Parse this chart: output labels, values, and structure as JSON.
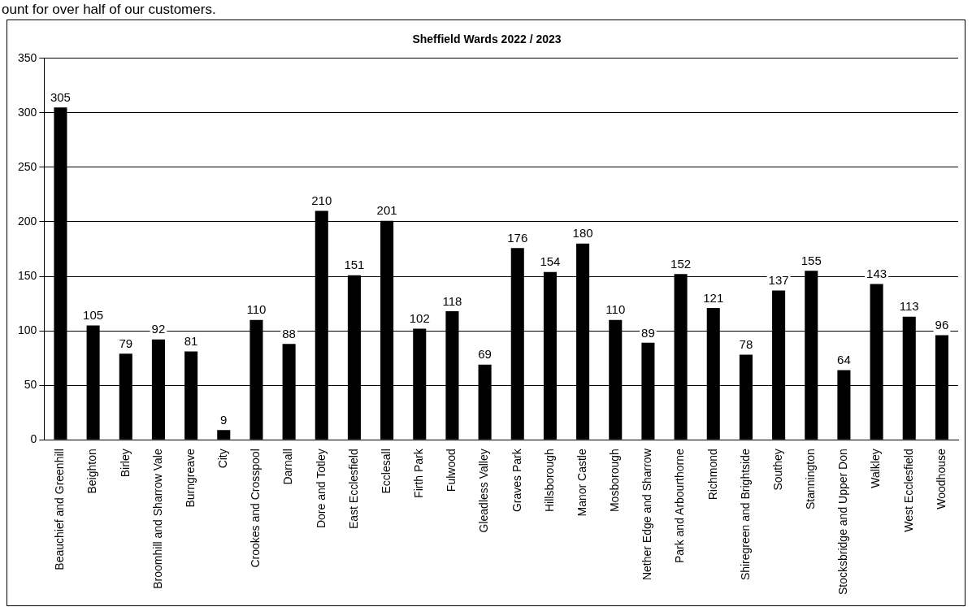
{
  "chart_data": {
    "type": "bar",
    "title": "Sheffield Wards 2022 / 2023",
    "annotations": [
      "ount for over half of our customers."
    ],
    "categories": [
      "Beauchief and Greenhill",
      "Beighton",
      "Birley",
      "Broomhill and Sharrow Vale",
      "Burngreave",
      "City",
      "Crookes and Crosspool",
      "Darnall",
      "Dore and Totley",
      "East Ecclesfield",
      "Ecclesall",
      "Firth Park",
      "Fulwood",
      "Gleadless Valley",
      "Graves Park",
      "Hillsborough",
      "Manor Castle",
      "Mosborough",
      "Nether Edge and Sharrow",
      "Park and Arbourthorne",
      "Richmond",
      "Shiregreen and Brightside",
      "Southey",
      "Stannington",
      "Stocksbridge and Upper Don",
      "Walkley",
      "West Ecclesfield",
      "Woodhouse"
    ],
    "values": [
      305,
      105,
      79,
      92,
      81,
      9,
      110,
      88,
      210,
      151,
      201,
      102,
      118,
      69,
      176,
      154,
      180,
      110,
      89,
      152,
      121,
      78,
      137,
      155,
      64,
      143,
      113,
      96
    ],
    "color": "#000000",
    "ylim": [
      0,
      350
    ],
    "yticks": [
      0,
      50,
      100,
      150,
      200,
      250,
      300,
      350
    ],
    "grid": "y",
    "data_labels": true,
    "legend": false
  }
}
